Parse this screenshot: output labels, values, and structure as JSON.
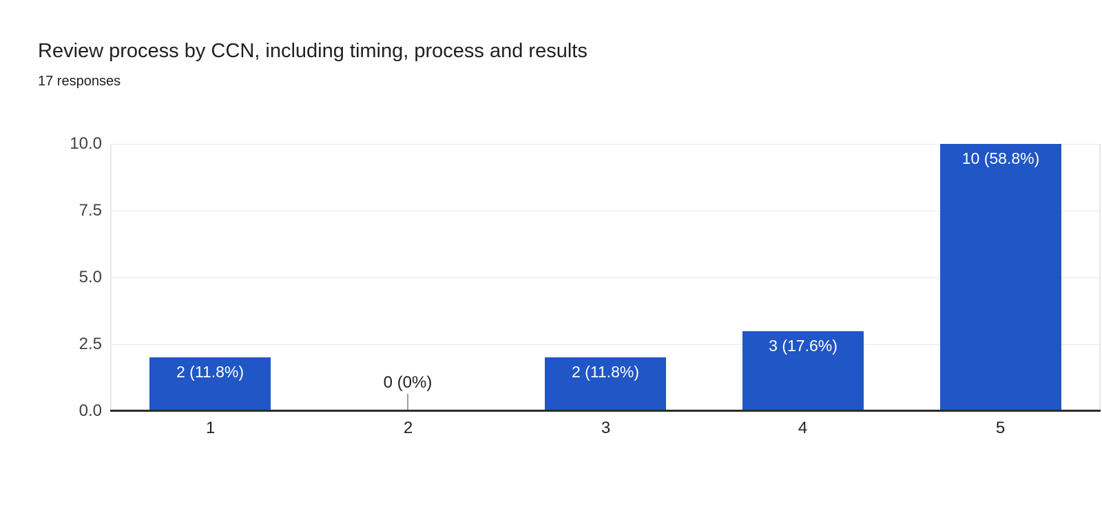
{
  "chart_data": {
    "type": "bar",
    "title": "Review process by CCN, including timing, process and results",
    "subtitle": "17 responses",
    "categories": [
      "1",
      "2",
      "3",
      "4",
      "5"
    ],
    "values": [
      2,
      0,
      2,
      3,
      10
    ],
    "bar_labels": [
      "2 (11.8%)",
      "0 (0%)",
      "2 (11.8%)",
      "3 (17.6%)",
      "10 (58.8%)"
    ],
    "percentages": [
      11.8,
      0,
      11.8,
      17.6,
      58.8
    ],
    "total_responses": 17,
    "xlabel": "",
    "ylabel": "",
    "ylim": [
      0,
      10
    ],
    "ytick_values": [
      0,
      2.5,
      5,
      7.5,
      10
    ],
    "ytick_labels": [
      "0.0",
      "2.5",
      "5.0",
      "7.5",
      "10.0"
    ],
    "grid": true,
    "legend_position": "none",
    "colors": {
      "bar": "#2056C5",
      "bar_label_text": "#ffffff",
      "zero_label_text": "#212121",
      "zero_stub": "#a0a0a0",
      "gridline": "#e8e8e8",
      "axis_line": "#2b2b2b",
      "title_text": "#212121",
      "subtitle_text": "#212121",
      "ytick_text": "#424242",
      "xtick_text": "#212121"
    }
  }
}
